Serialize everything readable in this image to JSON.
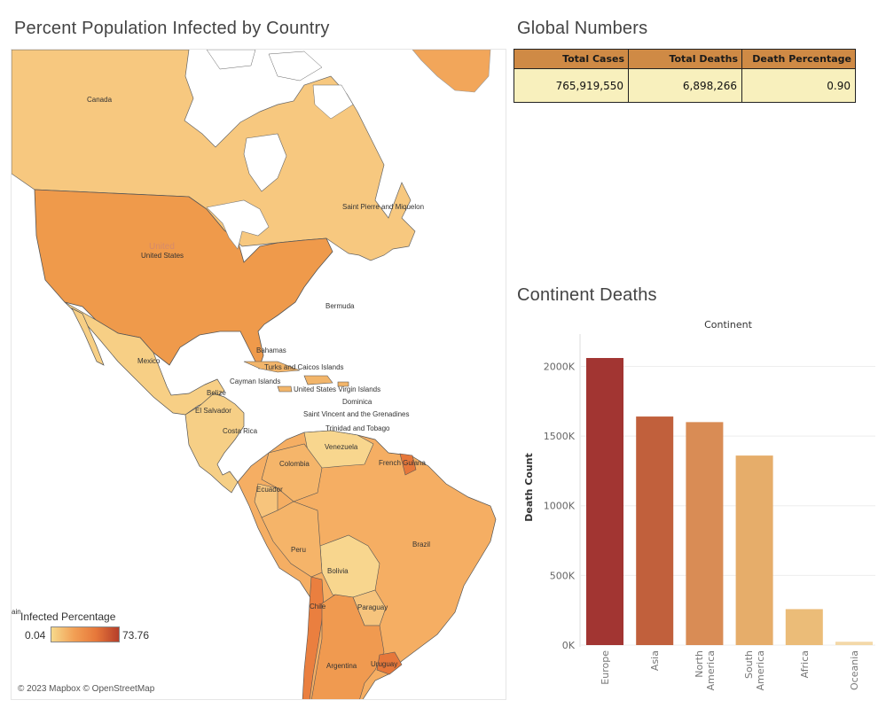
{
  "map": {
    "title": "Percent Population Infected by Country",
    "attribution": "© 2023 Mapbox © OpenStreetMap",
    "legend": {
      "title": "Infected Percentage",
      "min": "0.04",
      "max": "73.76",
      "clipped": "ain"
    },
    "labels": {
      "canada": "Canada",
      "united_states": "United States",
      "united_faint": "United",
      "saint_pierre": "Saint Pierre and Miquelon",
      "bermuda": "Bermuda",
      "mexico": "Mexico",
      "bahamas": "Bahamas",
      "turks": "Turks and Caicos Islands",
      "cayman": "Cayman Islands",
      "usvi": "United States Virgin Islands",
      "belize": "Belize",
      "dominica": "Dominica",
      "el_salvador": "El Salvador",
      "svg": "Saint Vincent and the Grenadines",
      "trinidad": "Trinidad and Tobago",
      "costa_rica": "Costa Rica",
      "venezuela": "Venezuela",
      "french_guiana": "French Guiana",
      "colombia": "Colombia",
      "ecuador": "Ecuador",
      "brazil": "Brazil",
      "peru": "Peru",
      "bolivia": "Bolivia",
      "chile": "Chile",
      "paraguay": "Paraguay",
      "argentina": "Argentina",
      "uruguay": "Uruguay"
    }
  },
  "global_numbers": {
    "title": "Global Numbers",
    "headers": [
      "Total Cases",
      "Total Deaths",
      "Death Percentage"
    ],
    "values": [
      "765,919,550",
      "6,898,266",
      "0.90"
    ]
  },
  "continent_deaths": {
    "title": "Continent Deaths"
  },
  "chart_data": {
    "type": "bar",
    "title": "Continent Deaths",
    "xlabel": "Continent",
    "ylabel": "Death Count",
    "categories": [
      "Europe",
      "Asia",
      "North America",
      "South America",
      "Africa",
      "Oceania"
    ],
    "values": [
      2060000,
      1640000,
      1600000,
      1360000,
      258000,
      24000
    ],
    "colors": [
      "#a23532",
      "#c1603c",
      "#d98c55",
      "#e6ad6a",
      "#ebbc78",
      "#f3d8a8"
    ],
    "ylim": [
      0,
      2200000
    ],
    "yticks": [
      0,
      500000,
      1000000,
      1500000,
      2000000
    ],
    "ytick_labels": [
      "0K",
      "500K",
      "1000K",
      "1500K",
      "2000K"
    ],
    "grid": true,
    "legend": "none"
  }
}
